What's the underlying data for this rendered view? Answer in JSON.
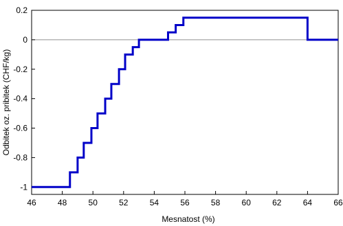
{
  "chart_data": {
    "type": "line",
    "xlabel": "Mesnatost (%)",
    "ylabel": "Odbitek oz. pribitek (CHF/kg)",
    "xlim": [
      46,
      66
    ],
    "ylim": [
      -1.05,
      0.2
    ],
    "xticks": [
      46,
      48,
      50,
      52,
      54,
      56,
      58,
      60,
      62,
      64,
      66
    ],
    "yticks": [
      0.2,
      0,
      -0.2,
      -0.4,
      -0.6,
      -0.8,
      -1
    ],
    "xtick_labels": [
      "46",
      "48",
      "50",
      "52",
      "54",
      "56",
      "58",
      "60",
      "62",
      "64",
      "66"
    ],
    "ytick_labels": [
      "0.2",
      "0",
      "-0.2",
      "-0.4",
      "-0.6",
      "-0.8",
      "-1"
    ],
    "grid": false,
    "reference_line_y": 0,
    "series": [
      {
        "color": "#0000c8",
        "step": true,
        "x": [
          46,
          48.5,
          48.5,
          49,
          49,
          49.4,
          49.4,
          49.9,
          49.9,
          50.3,
          50.3,
          50.8,
          50.8,
          51.2,
          51.2,
          51.7,
          51.7,
          52.1,
          52.1,
          52.6,
          52.6,
          53,
          53,
          53.5,
          53.5,
          54.9,
          54.9,
          55.4,
          55.4,
          55.9,
          55.9,
          64,
          64,
          66
        ],
        "y": [
          -1,
          -1,
          -0.9,
          -0.9,
          -0.8,
          -0.8,
          -0.7,
          -0.7,
          -0.6,
          -0.6,
          -0.5,
          -0.5,
          -0.4,
          -0.4,
          -0.3,
          -0.3,
          -0.2,
          -0.2,
          -0.1,
          -0.1,
          -0.05,
          -0.05,
          0,
          0,
          0,
          0,
          0.05,
          0.05,
          0.1,
          0.1,
          0.15,
          0.15,
          0,
          0
        ]
      }
    ]
  }
}
